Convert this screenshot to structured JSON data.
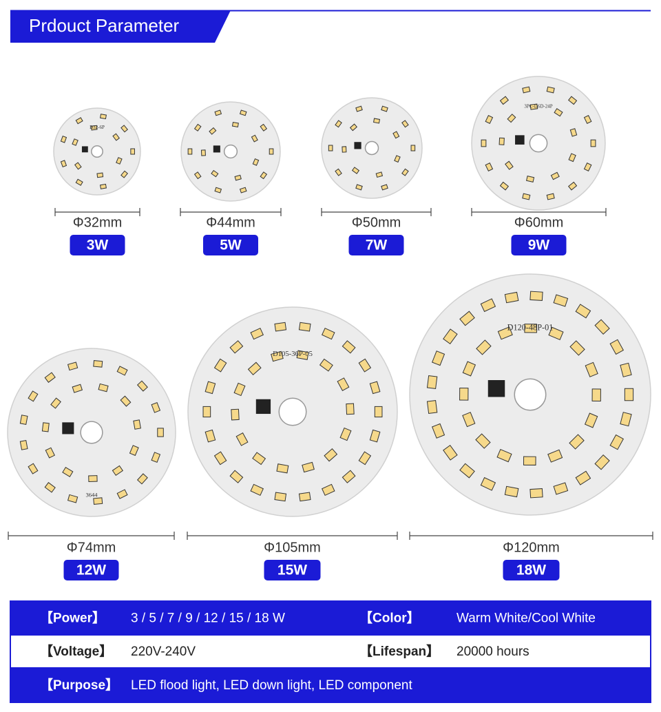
{
  "header": {
    "title": "Prdouct Parameter"
  },
  "products": [
    {
      "diameter": "Φ32mm",
      "power": "3W",
      "board_label": "D32-6P"
    },
    {
      "diameter": "Φ44mm",
      "power": "5W"
    },
    {
      "diameter": "Φ50mm",
      "power": "7W"
    },
    {
      "diameter": "Φ60mm",
      "power": "9W",
      "board_label": "3PC-D6D-24P"
    },
    {
      "diameter": "Φ74mm",
      "power": "12W",
      "board_label": "3644"
    },
    {
      "diameter": "Φ105mm",
      "power": "15W",
      "board_label": "D105-36P-05"
    },
    {
      "diameter": "Φ120mm",
      "power": "18W",
      "board_label": "D120-48P-01"
    }
  ],
  "specs": {
    "rows": [
      [
        {
          "label": "【Power】",
          "value": "3 / 5 / 7 / 9 / 12 / 15 / 18 W"
        },
        {
          "label": "【Color】",
          "value": "Warm White/Cool White"
        }
      ],
      [
        {
          "label": "【Voltage】",
          "value": "220V-240V"
        },
        {
          "label": "【Lifespan】",
          "value": "20000 hours"
        }
      ],
      [
        {
          "label": "【Purpose】",
          "value": "LED flood light, LED down light, LED component"
        }
      ]
    ]
  }
}
